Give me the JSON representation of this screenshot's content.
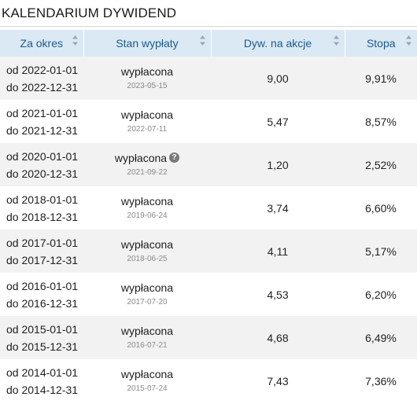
{
  "title": "KALENDARIUM DYWIDEND",
  "table": {
    "headers": [
      "Za okres",
      "Stan wypłaty",
      "Dyw. na akcje",
      "Stopa"
    ],
    "rows": [
      {
        "from": "od 2022-01-01",
        "to": "do 2022-12-31",
        "status": "wypłacona",
        "date": "2023-05-15",
        "dividend": "9,00",
        "rate": "9,91%",
        "help": false
      },
      {
        "from": "od 2021-01-01",
        "to": "do 2021-12-31",
        "status": "wypłacona",
        "date": "2022-07-11",
        "dividend": "5,47",
        "rate": "8,57%",
        "help": false
      },
      {
        "from": "od 2020-01-01",
        "to": "do 2020-12-31",
        "status": "wypłacona",
        "date": "2021-09-22",
        "dividend": "1,20",
        "rate": "2,52%",
        "help": true
      },
      {
        "from": "od 2018-01-01",
        "to": "do 2018-12-31",
        "status": "wypłacona",
        "date": "2019-06-24",
        "dividend": "3,74",
        "rate": "6,60%",
        "help": false
      },
      {
        "from": "od 2017-01-01",
        "to": "do 2017-12-31",
        "status": "wypłacona",
        "date": "2018-06-25",
        "dividend": "4,11",
        "rate": "5,17%",
        "help": false
      },
      {
        "from": "od 2016-01-01",
        "to": "do 2016-12-31",
        "status": "wypłacona",
        "date": "2017-07-20",
        "dividend": "4,53",
        "rate": "6,20%",
        "help": false
      },
      {
        "from": "od 2015-01-01",
        "to": "do 2015-12-31",
        "status": "wypłacona",
        "date": "2016-07-21",
        "dividend": "4,68",
        "rate": "6,49%",
        "help": false
      },
      {
        "from": "od 2014-01-01",
        "to": "do 2014-12-31",
        "status": "wypłacona",
        "date": "2015-07-24",
        "dividend": "7,43",
        "rate": "7,36%",
        "help": false
      }
    ]
  },
  "icons": {
    "sort": "sort-icon",
    "help": "question-circle-icon"
  },
  "colors": {
    "header_bg": "#dbe9f5",
    "header_text": "#1d5a8c",
    "row_alt": "#f2f2f2"
  }
}
